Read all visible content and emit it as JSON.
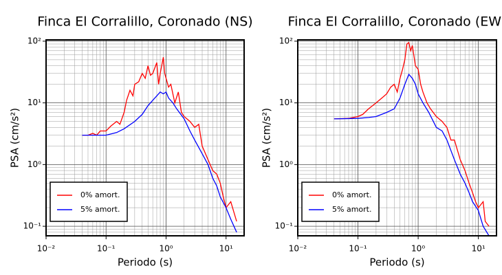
{
  "chart_data": [
    {
      "type": "line",
      "title": "Finca El Corralillo, Coronado (NS)",
      "xlabel": "Periodo (s)",
      "ylabel": "PSA (cm/s²)",
      "xscale": "log",
      "yscale": "log",
      "grid": true,
      "legend": "lower left",
      "xlim": [
        0.01,
        20
      ],
      "ylim": [
        0.07,
        105
      ],
      "xticks": [
        {
          "value": 0.01,
          "label": "10⁻²"
        },
        {
          "value": 0.1,
          "label": "10⁻¹"
        },
        {
          "value": 1,
          "label": "10⁰"
        },
        {
          "value": 10,
          "label": "10¹"
        }
      ],
      "yticks": [
        {
          "value": 0.1,
          "label": "10⁻¹"
        },
        {
          "value": 1,
          "label": "10⁰"
        },
        {
          "value": 10,
          "label": "10¹"
        },
        {
          "value": 100,
          "label": "10²"
        }
      ],
      "series": [
        {
          "name": "0% amort.",
          "color": "#ff0000",
          "x": [
            0.04,
            0.05,
            0.06,
            0.07,
            0.08,
            0.1,
            0.12,
            0.15,
            0.17,
            0.2,
            0.22,
            0.25,
            0.28,
            0.3,
            0.35,
            0.4,
            0.45,
            0.5,
            0.55,
            0.6,
            0.7,
            0.75,
            0.8,
            0.9,
            0.95,
            1.0,
            1.1,
            1.2,
            1.4,
            1.6,
            1.8,
            2,
            2.5,
            3,
            3.5,
            4,
            5,
            6,
            7,
            8,
            9,
            10,
            12,
            15
          ],
          "values": [
            3.0,
            3.0,
            3.2,
            3.0,
            3.5,
            3.5,
            4.2,
            5,
            4.5,
            7,
            11,
            16,
            13,
            20,
            22,
            30,
            25,
            40,
            28,
            30,
            45,
            20,
            30,
            55,
            30,
            25,
            18,
            20,
            10,
            15,
            7,
            6,
            5,
            4,
            4.5,
            2,
            1.2,
            0.8,
            0.7,
            0.5,
            0.3,
            0.2,
            0.25,
            0.12
          ]
        },
        {
          "name": "5% amort.",
          "color": "#0000ff",
          "x": [
            0.04,
            0.06,
            0.08,
            0.1,
            0.15,
            0.2,
            0.3,
            0.4,
            0.5,
            0.6,
            0.7,
            0.8,
            0.9,
            1.0,
            1.1,
            1.3,
            1.5,
            2,
            2.5,
            3,
            4,
            5,
            6,
            7,
            8,
            10,
            12,
            15
          ],
          "values": [
            3.0,
            3.0,
            3.0,
            3.0,
            3.3,
            3.8,
            5,
            6.5,
            9,
            11,
            13,
            15,
            14,
            15,
            12,
            10,
            8,
            5.5,
            3.5,
            2.5,
            1.5,
            1,
            0.6,
            0.45,
            0.3,
            0.2,
            0.13,
            0.08
          ]
        }
      ]
    },
    {
      "type": "line",
      "title": "Finca El Corralillo, Coronado (EW)",
      "xlabel": "Periodo (s)",
      "ylabel": "PSA (cm/s²)",
      "xscale": "log",
      "yscale": "log",
      "grid": true,
      "legend": "lower left",
      "xlim": [
        0.01,
        20
      ],
      "ylim": [
        0.07,
        105
      ],
      "xticks": [
        {
          "value": 0.01,
          "label": "10⁻²"
        },
        {
          "value": 0.1,
          "label": "10⁻¹"
        },
        {
          "value": 1,
          "label": "10⁰"
        },
        {
          "value": 10,
          "label": "10¹"
        }
      ],
      "yticks": [
        {
          "value": 0.1,
          "label": "10⁻¹"
        },
        {
          "value": 1,
          "label": "10⁰"
        },
        {
          "value": 10,
          "label": "10¹"
        },
        {
          "value": 100,
          "label": "10²"
        }
      ],
      "series": [
        {
          "name": "0% amort.",
          "color": "#ff0000",
          "x": [
            0.04,
            0.07,
            0.1,
            0.12,
            0.15,
            0.2,
            0.25,
            0.3,
            0.35,
            0.4,
            0.45,
            0.5,
            0.55,
            0.6,
            0.65,
            0.7,
            0.75,
            0.8,
            0.9,
            1.0,
            1.1,
            1.2,
            1.4,
            1.6,
            2,
            2.5,
            3,
            3.5,
            4,
            5,
            6,
            7,
            8,
            9,
            10,
            12,
            13,
            15
          ],
          "values": [
            5.5,
            5.6,
            6,
            6.5,
            8,
            10,
            12,
            14,
            18,
            20,
            15,
            25,
            35,
            50,
            90,
            95,
            70,
            85,
            40,
            35,
            20,
            15,
            10,
            8,
            6,
            5,
            4,
            2.5,
            2.5,
            1.2,
            0.8,
            0.5,
            0.35,
            0.25,
            0.2,
            0.25,
            0.12,
            0.1
          ]
        },
        {
          "name": "5% amort.",
          "color": "#0000ff",
          "x": [
            0.04,
            0.1,
            0.15,
            0.2,
            0.3,
            0.4,
            0.5,
            0.6,
            0.7,
            0.8,
            0.9,
            1.0,
            1.2,
            1.5,
            2,
            2.5,
            3,
            4,
            5,
            6,
            7,
            8,
            10,
            12,
            15
          ],
          "values": [
            5.5,
            5.6,
            5.8,
            6,
            7,
            8,
            12,
            20,
            29,
            25,
            20,
            14,
            10,
            7,
            4,
            3.5,
            2.5,
            1.2,
            0.7,
            0.5,
            0.35,
            0.25,
            0.18,
            0.1,
            0.07
          ]
        }
      ]
    }
  ]
}
